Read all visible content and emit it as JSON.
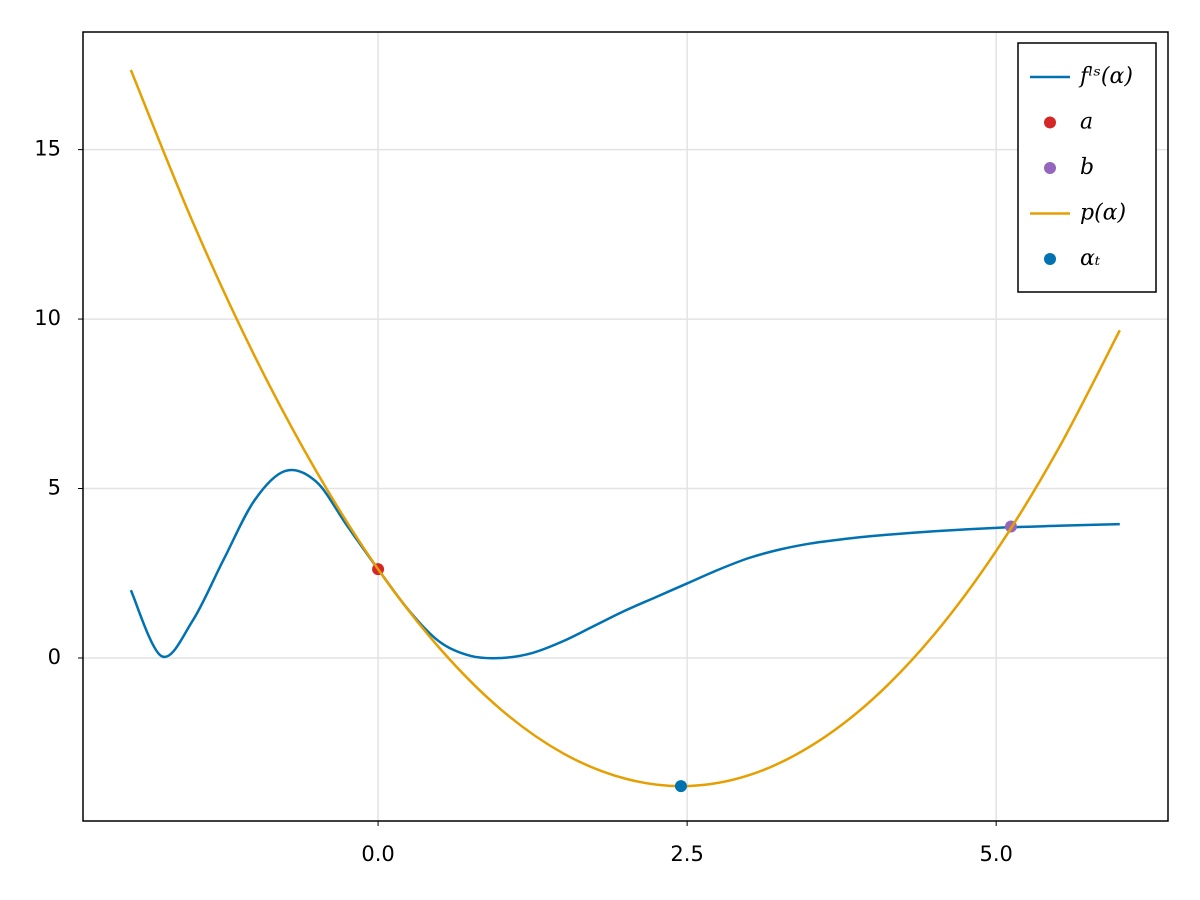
{
  "chart_data": {
    "type": "line",
    "xlim": [
      -2.387,
      6.39
    ],
    "ylim": [
      -4.81,
      18.47
    ],
    "xticks": [
      {
        "value": 0,
        "label": "0.0"
      },
      2.5,
      {
        "value": 5,
        "label": "5.0"
      }
    ],
    "yticks": [
      0,
      5,
      10,
      15
    ],
    "grid": true,
    "legend_position": "top-right",
    "series": [
      {
        "name": "fˡˢ(α)",
        "type": "line",
        "color": "#0072b2",
        "x": [
          -2,
          -1.75,
          -1.5,
          -1.25,
          -1,
          -0.75,
          -0.5,
          -0.25,
          0,
          0.25,
          0.5,
          0.75,
          1,
          1.25,
          1.5,
          1.75,
          2,
          2.25,
          2.5,
          2.75,
          3,
          3.25,
          3.5,
          3.75,
          4,
          4.5,
          5,
          5.5,
          6
        ],
        "values": [
          2.0,
          0.05,
          1.1,
          2.9,
          4.65,
          5.52,
          5.2,
          3.9,
          2.62,
          1.4,
          0.47,
          0.06,
          0.0,
          0.15,
          0.5,
          0.95,
          1.4,
          1.8,
          2.2,
          2.6,
          2.95,
          3.2,
          3.38,
          3.5,
          3.6,
          3.74,
          3.84,
          3.9,
          3.95
        ]
      },
      {
        "name": "a",
        "type": "scatter",
        "color": "#d62728",
        "x": [
          0
        ],
        "values": [
          2.62
        ]
      },
      {
        "name": "b",
        "type": "scatter",
        "color": "#9467bd",
        "x": [
          5.12
        ],
        "values": [
          3.88
        ]
      },
      {
        "name": "p(α)",
        "type": "line",
        "color": "#e69f00",
        "x": [
          -2,
          -1.5,
          -1,
          -0.5,
          0,
          0.5,
          1,
          1.5,
          2,
          2.5,
          3,
          3.5,
          4,
          4.5,
          5,
          5.5,
          6
        ],
        "values": [
          17.35,
          12.87,
          8.92,
          5.51,
          2.62,
          0.28,
          -1.54,
          -2.82,
          -3.56,
          -3.78,
          -3.46,
          -2.6,
          -1.22,
          0.7,
          3.16,
          6.15,
          9.67
        ]
      },
      {
        "name": "αₜ",
        "type": "scatter",
        "color": "#0072b2",
        "x": [
          2.45
        ],
        "values": [
          -3.78
        ]
      }
    ]
  }
}
